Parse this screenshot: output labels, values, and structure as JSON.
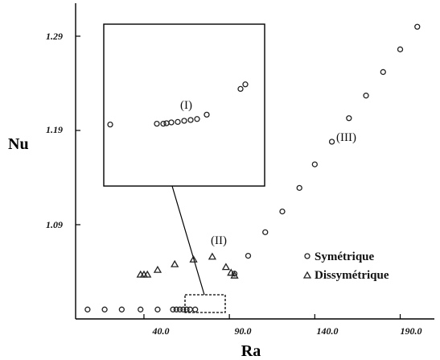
{
  "chart_data": {
    "type": "scatter",
    "xlabel": "Ra",
    "ylabel": "Nu",
    "xlim": [
      0,
      210
    ],
    "ylim": [
      0.99,
      1.325
    ],
    "x_ticks": [
      "40.0",
      "90.0",
      "140.0",
      "190.0"
    ],
    "y_ticks": [
      "1.29",
      "1.19",
      "1.09"
    ],
    "grid": false,
    "legend_position": "lower-right",
    "region_labels": [
      "(I)",
      "(II)",
      "(III)"
    ],
    "series": [
      {
        "name": "Symétrique",
        "marker": "circle",
        "points": [
          [
            7,
            1.0
          ],
          [
            17,
            1.0
          ],
          [
            27,
            1.0
          ],
          [
            38,
            1.0
          ],
          [
            48,
            1.0
          ],
          [
            57,
            1.0
          ],
          [
            59,
            1.0
          ],
          [
            61,
            1.0
          ],
          [
            63,
            1.0
          ],
          [
            65,
            1.0
          ],
          [
            67,
            1.0
          ],
          [
            70,
            1.0
          ],
          [
            93,
            1.038
          ],
          [
            101,
            1.057
          ],
          [
            111,
            1.082
          ],
          [
            121,
            1.104
          ],
          [
            131,
            1.129
          ],
          [
            140,
            1.154
          ],
          [
            150,
            1.178
          ],
          [
            160,
            1.203
          ],
          [
            170,
            1.227
          ],
          [
            180,
            1.252
          ],
          [
            190,
            1.276
          ],
          [
            200,
            1.3
          ]
        ]
      },
      {
        "name": "Dissymétrique",
        "marker": "triangle",
        "points": [
          [
            38,
            1.037
          ],
          [
            40,
            1.037
          ],
          [
            42,
            1.037
          ],
          [
            48,
            1.042
          ],
          [
            58,
            1.048
          ],
          [
            69,
            1.053
          ],
          [
            80,
            1.056
          ],
          [
            88,
            1.045
          ],
          [
            91,
            1.039
          ],
          [
            93,
            1.036
          ]
        ]
      }
    ],
    "inset": {
      "region_label": "(I)",
      "points": [
        [
          0.04,
          0.62
        ],
        [
          0.33,
          0.615
        ],
        [
          0.37,
          0.615
        ],
        [
          0.39,
          0.612
        ],
        [
          0.42,
          0.607
        ],
        [
          0.46,
          0.604
        ],
        [
          0.5,
          0.597
        ],
        [
          0.54,
          0.592
        ],
        [
          0.58,
          0.586
        ],
        [
          0.64,
          0.559
        ],
        [
          0.85,
          0.4
        ],
        [
          0.88,
          0.372
        ]
      ]
    }
  }
}
